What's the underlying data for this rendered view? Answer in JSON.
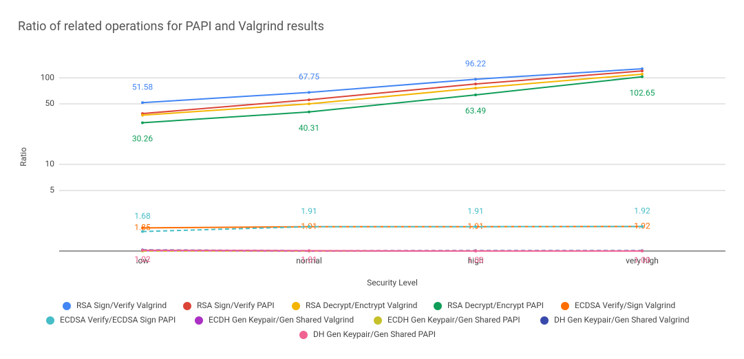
{
  "chart_data": {
    "type": "line",
    "title": "Ratio of related operations for PAPI and Valgrind results",
    "x_label": "Security Level",
    "y_label": "Ratio",
    "categories": [
      "low",
      "normal",
      "high",
      "very high"
    ],
    "log_y": true,
    "grid": true,
    "legend": "bottom",
    "ylim": [
      1,
      300
    ],
    "yticks": [
      5,
      10,
      50,
      100
    ],
    "series": [
      {
        "name": "RSA Sign/Verify Valgrind",
        "color": "#4285f4",
        "values": [
          51.58,
          67.75,
          96.22,
          127
        ],
        "value_labels": [
          "51.58",
          "67.75",
          "96.22",
          null
        ]
      },
      {
        "name": "RSA Sign/Verify PAPI",
        "color": "#db4437",
        "values": [
          38.6,
          55.7,
          84.8,
          120
        ]
      },
      {
        "name": "RSA Decrypt/Enctrypt Valgrind",
        "color": "#f4b400",
        "values": [
          37,
          50,
          76,
          110
        ]
      },
      {
        "name": "RSA Decrypt/Encrypt PAPI",
        "color": "#0f9d58",
        "values": [
          30.26,
          40.31,
          63.49,
          102.65
        ],
        "value_labels": [
          "30.26",
          "40.31",
          "63.49",
          "102.65"
        ]
      },
      {
        "name": "ECDSA Verify/Sign Valgrind",
        "color": "#ff6d01",
        "values": [
          1.85,
          1.91,
          1.91,
          1.92
        ],
        "value_labels": [
          "1.85",
          "1.91",
          "1.91",
          "1.92"
        ]
      },
      {
        "name": "ECDSA Verify/ECDSA Sign PAPI",
        "color": "#46bdc6",
        "dashed": true,
        "values": [
          1.68,
          1.91,
          1.91,
          1.92
        ],
        "value_labels": [
          "1.68",
          "1.91",
          "1.91",
          "1.92"
        ]
      },
      {
        "name": "ECDH Gen Keypair/Gen Shared Valgrind",
        "color": "#ab30c4",
        "values": [
          1.01,
          1.0,
          1.0,
          1.0
        ]
      },
      {
        "name": "ECDH Gen Keypair/Gen Shared PAPI",
        "color": "#c6c02a",
        "dashed": true,
        "values": [
          1.0,
          1.0,
          1.01,
          1.0
        ]
      },
      {
        "name": "DH Gen Keypair/Gen Shared Valgrind",
        "color": "#3949ab",
        "dashed": true,
        "values": [
          1.03,
          1.01,
          1.01,
          1.01
        ]
      },
      {
        "name": "DH Gen Keypair/Gen Shared PAPI",
        "color": "#f06292",
        "values": [
          1.02,
          1.01,
          1,
          1
        ],
        "value_labels": [
          "1.02",
          "1.01",
          "1.00",
          "1.00"
        ]
      }
    ]
  }
}
